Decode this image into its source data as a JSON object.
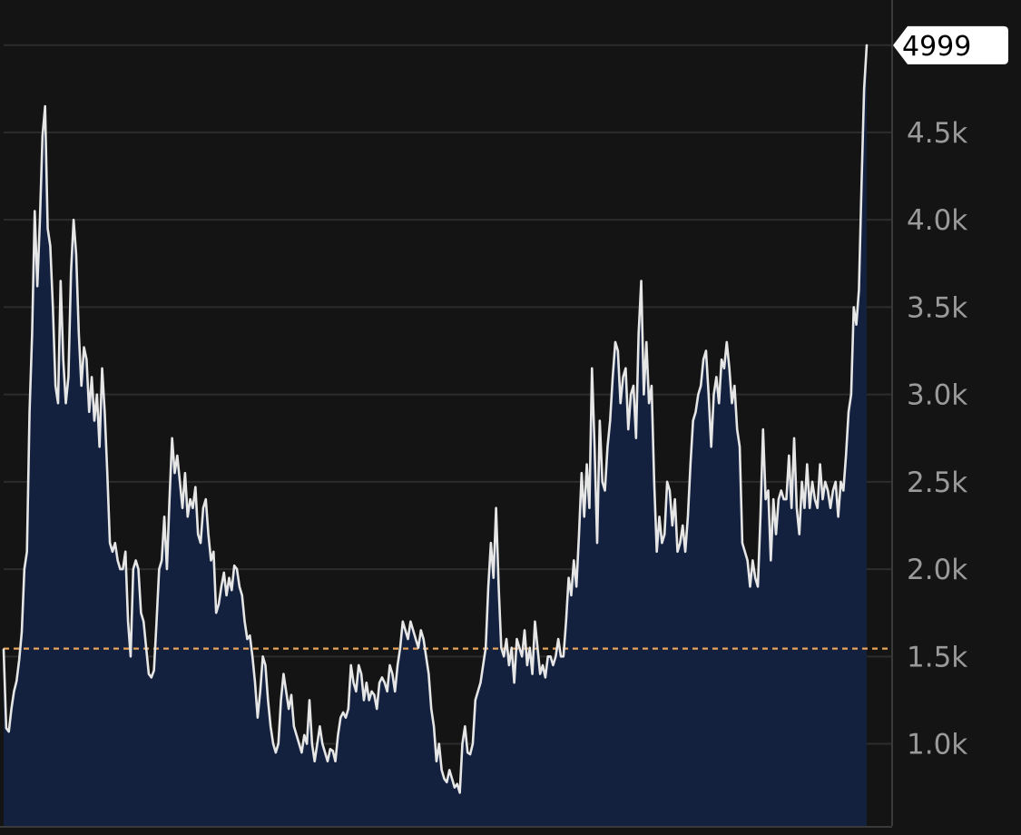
{
  "chart_data": {
    "type": "area",
    "title": "",
    "xlabel": "",
    "ylabel": "",
    "ylim": [
      530,
      5040
    ],
    "yticks": [
      {
        "value": 1000,
        "label": "1.0k"
      },
      {
        "value": 1500,
        "label": "1.5k"
      },
      {
        "value": 2000,
        "label": "2.0k"
      },
      {
        "value": 2500,
        "label": "2.5k"
      },
      {
        "value": 3000,
        "label": "3.0k"
      },
      {
        "value": 3500,
        "label": "3.5k"
      },
      {
        "value": 4000,
        "label": "4.0k"
      },
      {
        "value": 4500,
        "label": "4.5k"
      },
      {
        "value": 5000,
        "label": ""
      }
    ],
    "grid": true,
    "reference_line": {
      "value": 1545,
      "style": "dashed",
      "color": "#e8a45a"
    },
    "last_value": 4999,
    "last_value_label": "4999",
    "series": [
      {
        "values": [
          1540,
          1090,
          1070,
          1200,
          1300,
          1360,
          1480,
          1640,
          2000,
          2100,
          2900,
          3350,
          4050,
          3620,
          4000,
          4480,
          4650,
          3950,
          3850,
          3500,
          3050,
          2950,
          3650,
          3200,
          2950,
          3100,
          3700,
          4000,
          3800,
          3350,
          3050,
          3270,
          3200,
          2900,
          3100,
          2850,
          3000,
          2700,
          3150,
          2900,
          2550,
          2150,
          2100,
          2150,
          2050,
          2000,
          2000,
          2100,
          1700,
          1500,
          2000,
          2050,
          2000,
          1750,
          1700,
          1550,
          1400,
          1380,
          1420,
          1700,
          2000,
          2050,
          2300,
          2000,
          2400,
          2750,
          2550,
          2650,
          2500,
          2350,
          2550,
          2300,
          2400,
          2350,
          2470,
          2200,
          2150,
          2350,
          2400,
          2200,
          2050,
          2100,
          1750,
          1800,
          1900,
          1980,
          1850,
          1950,
          1880,
          2020,
          2000,
          1900,
          1850,
          1700,
          1600,
          1620,
          1500,
          1350,
          1150,
          1300,
          1500,
          1450,
          1250,
          1100,
          1000,
          950,
          1000,
          1250,
          1400,
          1300,
          1200,
          1280,
          1100,
          1050,
          1000,
          950,
          1050,
          1000,
          1250,
          1000,
          900,
          1000,
          1100,
          1000,
          950,
          900,
          970,
          960,
          900,
          1050,
          1150,
          1180,
          1150,
          1200,
          1450,
          1350,
          1300,
          1450,
          1400,
          1250,
          1350,
          1250,
          1300,
          1280,
          1200,
          1350,
          1380,
          1350,
          1300,
          1450,
          1400,
          1300,
          1450,
          1550,
          1700,
          1650,
          1600,
          1700,
          1650,
          1600,
          1550,
          1650,
          1600,
          1500,
          1400,
          1200,
          1100,
          900,
          1000,
          850,
          800,
          780,
          850,
          800,
          750,
          770,
          720,
          1000,
          1100,
          950,
          940,
          1000,
          1250,
          1300,
          1350,
          1450,
          1550,
          1900,
          2150,
          1950,
          2350,
          1900,
          1550,
          1500,
          1600,
          1450,
          1550,
          1350,
          1600,
          1550,
          1500,
          1650,
          1450,
          1550,
          1400,
          1700,
          1550,
          1400,
          1450,
          1380,
          1500,
          1500,
          1450,
          1500,
          1600,
          1500,
          1500,
          1700,
          1950,
          1850,
          2050,
          1900,
          2200,
          2550,
          2300,
          2600,
          2350,
          3150,
          2700,
          2150,
          2850,
          2500,
          2450,
          2700,
          2850,
          3100,
          3300,
          3250,
          2950,
          3100,
          3150,
          2800,
          3000,
          3050,
          2750,
          3350,
          3650,
          3000,
          3300,
          2950,
          3050,
          2500,
          2100,
          2300,
          2150,
          2200,
          2500,
          2450,
          2250,
          2400,
          2100,
          2150,
          2250,
          2100,
          2300,
          2600,
          2850,
          2900,
          3000,
          3050,
          3200,
          3250,
          3000,
          2700,
          3000,
          3100,
          2950,
          3200,
          3150,
          3300,
          3150,
          2950,
          3050,
          2800,
          2700,
          2150,
          2100,
          2050,
          1900,
          2050,
          1950,
          1900,
          2300,
          2800,
          2400,
          2450,
          2050,
          2400,
          2200,
          2400,
          2450,
          2400,
          2400,
          2650,
          2350,
          2750,
          2350,
          2200,
          2500,
          2350,
          2600,
          2350,
          2500,
          2400,
          2350,
          2600,
          2400,
          2500,
          2450,
          2350,
          2450,
          2500,
          2300,
          2500,
          2450,
          2650,
          2900,
          3000,
          3500,
          3400,
          3600,
          4200,
          4750,
          4999
        ]
      }
    ]
  },
  "colors": {
    "background": "#141414",
    "fill": "#13213f",
    "line": "#e6e6e6",
    "grid": "#2c2c2c",
    "axis": "#3a3a3a",
    "reference": "#e8a45a",
    "tick_text": "#9a9a9a",
    "label_bg": "#ffffff",
    "label_text": "#000000"
  }
}
